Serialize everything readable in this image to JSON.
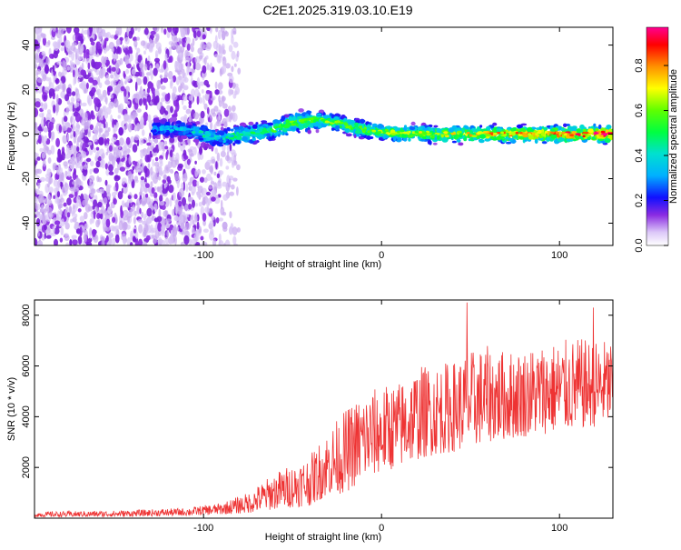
{
  "title": "C2E1.2025.319.03.10.E19",
  "colorbar": {
    "label": "Normalized spectral amplitude",
    "ticks": [
      "0.0",
      "0.2",
      "0.4",
      "0.6",
      "0.8"
    ],
    "tick_values": [
      0.0,
      0.2,
      0.4,
      0.6,
      0.8
    ],
    "range": [
      0,
      0.97
    ]
  },
  "chart_data": [
    {
      "type": "heatmap",
      "title": "",
      "xlabel": "Height of straight line (km)",
      "ylabel": "Frequency (Hz)",
      "xlim": [
        -195,
        130
      ],
      "ylim": [
        -50,
        48
      ],
      "x_ticks": [
        -100,
        0,
        100
      ],
      "x_tick_labels": [
        "-100",
        "0",
        "100"
      ],
      "y_ticks": [
        40,
        20,
        0,
        -20,
        -40
      ],
      "y_tick_labels": [
        "40",
        "20",
        "0",
        "-20",
        "-40"
      ],
      "ridge": {
        "x": [
          -128,
          -110,
          -100,
          -92,
          -85,
          -75,
          -60,
          -50,
          -40,
          -30,
          -20,
          -10,
          0,
          20,
          40,
          60,
          80,
          100,
          130
        ],
        "y": [
          3,
          2,
          0,
          -2,
          -1,
          0,
          2,
          5,
          6,
          6,
          4,
          2,
          1,
          0,
          0,
          0,
          0,
          0,
          0
        ],
        "amplitude": [
          0.35,
          0.35,
          0.45,
          0.4,
          0.45,
          0.5,
          0.55,
          0.6,
          0.6,
          0.6,
          0.6,
          0.6,
          0.6,
          0.65,
          0.7,
          0.75,
          0.8,
          0.85,
          0.9
        ]
      },
      "noise_region": {
        "x_from": -195,
        "x_to": -80,
        "amplitude": 0.1
      }
    },
    {
      "type": "line",
      "title": "",
      "xlabel": "Height of straight line (km)",
      "ylabel": "SNR (10 * v/v)",
      "xlim": [
        -195,
        130
      ],
      "ylim": [
        0,
        8600
      ],
      "x_ticks": [
        -100,
        0,
        100
      ],
      "x_tick_labels": [
        "-100",
        "0",
        "100"
      ],
      "y_ticks": [
        2000,
        4000,
        6000,
        8000
      ],
      "y_tick_labels": [
        "2000",
        "4000",
        "6000",
        "8000"
      ],
      "series": [
        {
          "color": "#ee3333",
          "envelope": {
            "x": [
              -195,
              -150,
              -110,
              -90,
              -75,
              -60,
              -40,
              -30,
              -20,
              -10,
              0,
              10,
              20,
              30,
              40,
              50,
              60,
              70,
              80,
              90,
              100,
              110,
              120,
              130
            ],
            "y_low": [
              50,
              60,
              100,
              150,
              200,
              350,
              500,
              900,
              1000,
              1500,
              1800,
              2000,
              2300,
              2500,
              2600,
              2800,
              3000,
              3100,
              3200,
              3300,
              3400,
              3500,
              3600,
              3700
            ],
            "y_high": [
              250,
              300,
              400,
              600,
              1000,
              1800,
              2500,
              3500,
              4300,
              5000,
              5200,
              5400,
              6000,
              6100,
              6200,
              6600,
              6800,
              6600,
              6700,
              6900,
              7000,
              7100,
              7000,
              7100
            ]
          },
          "peaks": [
            {
              "x": 48,
              "y": 8500
            },
            {
              "x": 119,
              "y": 8300
            }
          ]
        }
      ]
    }
  ]
}
